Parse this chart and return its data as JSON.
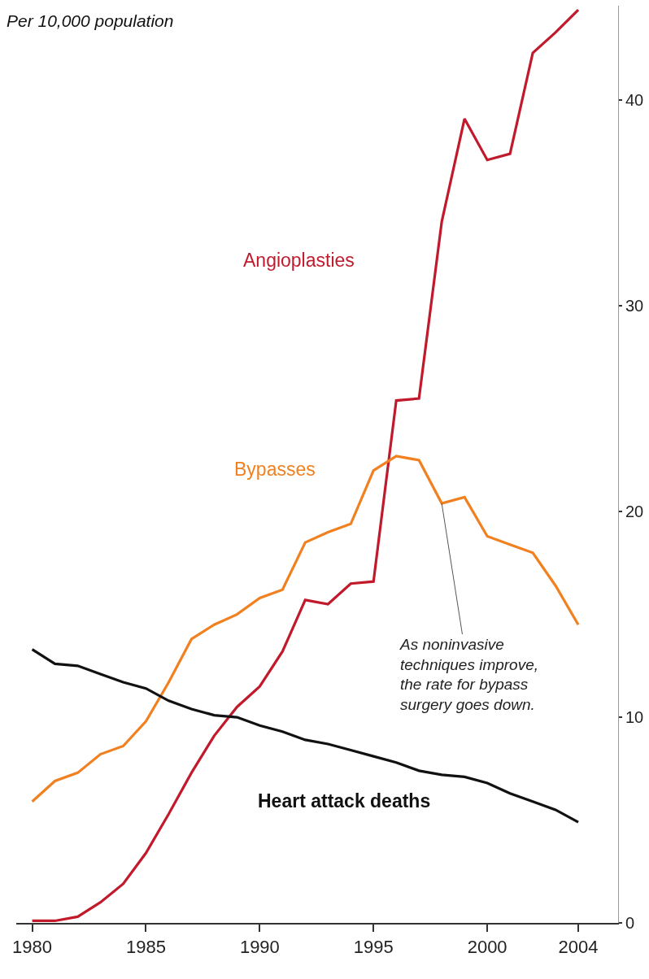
{
  "chart_data": {
    "type": "line",
    "title": "Per 10,000 population",
    "x": [
      1980,
      1981,
      1982,
      1983,
      1984,
      1985,
      1986,
      1987,
      1988,
      1989,
      1990,
      1991,
      1992,
      1993,
      1994,
      1995,
      1996,
      1997,
      1998,
      1999,
      2000,
      2001,
      2002,
      2003,
      2004
    ],
    "series": [
      {
        "name": "Angioplasties",
        "color": "#c01a2c",
        "values": [
          0.1,
          0.1,
          0.3,
          1.0,
          1.9,
          3.4,
          5.3,
          7.3,
          9.1,
          10.5,
          11.5,
          13.2,
          15.7,
          15.5,
          16.5,
          16.6,
          25.4,
          25.5,
          34.1,
          39.1,
          37.1,
          37.4,
          42.3,
          43.3,
          44.4
        ]
      },
      {
        "name": "Bypasses",
        "color": "#f08020",
        "values": [
          5.9,
          6.9,
          7.3,
          8.2,
          8.6,
          9.8,
          11.7,
          13.8,
          14.5,
          15.0,
          15.8,
          16.2,
          18.5,
          19.0,
          19.4,
          22.0,
          22.7,
          22.5,
          20.4,
          20.7,
          18.8,
          18.4,
          18.0,
          16.4,
          14.5
        ]
      },
      {
        "name": "Heart attack deaths",
        "color": "#111111",
        "values": [
          13.3,
          12.6,
          12.5,
          12.1,
          11.7,
          11.4,
          10.8,
          10.4,
          10.1,
          10.0,
          9.6,
          9.3,
          8.9,
          8.7,
          8.4,
          8.1,
          7.8,
          7.4,
          7.2,
          7.1,
          6.8,
          6.3,
          5.9,
          5.5,
          4.9
        ]
      }
    ],
    "annotations": [
      {
        "text": "As noninvasive\ntechniques improve,\nthe rate for bypass\nsurgery goes down.",
        "x": 1998,
        "y": 20.4
      }
    ],
    "xlim": [
      1979.3,
      2005.75
    ],
    "xticks": [
      1980,
      1985,
      1990,
      1995,
      2000,
      2004
    ],
    "ylim": [
      0,
      44.6
    ],
    "yticks": [
      0,
      10,
      20,
      30,
      40
    ],
    "legend": false,
    "marker": "none",
    "line_style": "solid"
  }
}
